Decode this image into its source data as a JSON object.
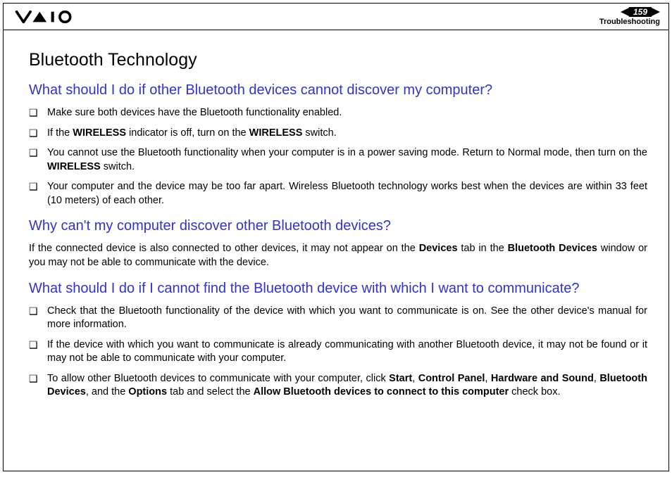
{
  "header": {
    "page_number": "159",
    "section": "Troubleshooting"
  },
  "title": "Bluetooth Technology",
  "q1": {
    "question": "What should I do if other Bluetooth devices cannot discover my computer?",
    "bullets": [
      "Make sure both devices have the Bluetooth functionality enabled.",
      "If the <b>WIRELESS</b> indicator is off, turn on the <b>WIRELESS</b> switch.",
      "You cannot use the Bluetooth functionality when your computer is in a power saving mode. Return to Normal mode, then turn on the <b>WIRELESS</b> switch.",
      "Your computer and the device may be too far apart. Wireless Bluetooth technology works best when the devices are within 33 feet (10 meters) of each other."
    ]
  },
  "q2": {
    "question": "Why can't my computer discover other Bluetooth devices?",
    "body": "If the connected device is also connected to other devices, it may not appear on the <b>Devices</b> tab in the <b>Bluetooth Devices</b> window or you may not be able to communicate with the device."
  },
  "q3": {
    "question": "What should I do if I cannot find the Bluetooth device with which I want to communicate?",
    "bullets": [
      "Check that the Bluetooth functionality of the device with which you want to communicate is on. See the other device's manual for more information.",
      "If the device with which you want to communicate is already communicating with another Bluetooth device, it may not be found or it may not be able to communicate with your computer.",
      "To allow other Bluetooth devices to communicate with your computer, click <b>Start</b>, <b>Control Panel</b>, <b>Hardware and Sound</b>, <b>Bluetooth Devices</b>, and the <b>Options</b> tab and select the <b>Allow Bluetooth devices to connect to this computer</b> check box."
    ]
  },
  "colors": {
    "question_color": "#3232cc",
    "text_color": "#000000",
    "background": "#ffffff"
  }
}
